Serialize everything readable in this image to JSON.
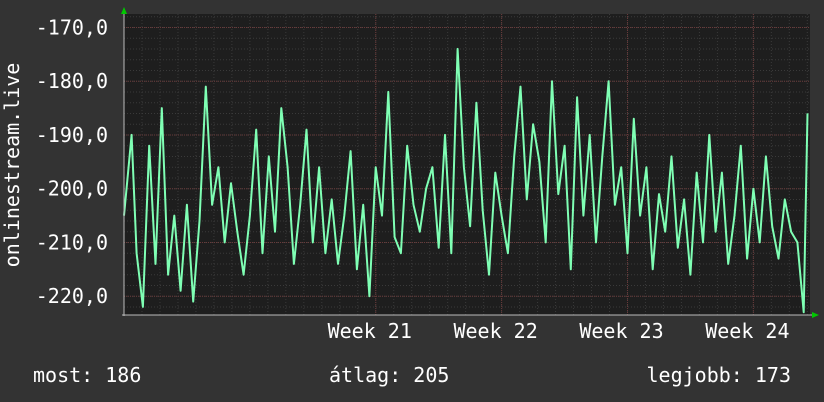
{
  "chart_data": {
    "type": "line",
    "ylabel": "onlinestream.live",
    "ylim": [
      -223.5,
      -167.5
    ],
    "yticks": [
      -170.0,
      -180.0,
      -190.0,
      -200.0,
      -210.0,
      -220.0
    ],
    "ytick_labels": [
      "-170,0",
      "-180,0",
      "-190,0",
      "-200,0",
      "-210,0",
      "-220,0"
    ],
    "xlim": [
      19.0,
      24.45
    ],
    "xticks": [
      21,
      22,
      23,
      24
    ],
    "xtick_labels": [
      "Week  21",
      "Week  22",
      "Week  23",
      "Week  24"
    ],
    "grid": true,
    "colors": {
      "line": "#7fffb4",
      "plot_bg": "#1e1e1e",
      "page_bg": "#333333",
      "grid_major": "#6a3a3a",
      "grid_minor": "#3a3a3a",
      "arrow": "#00c800"
    },
    "series": [
      {
        "x": [
          19.0,
          19.06,
          19.1,
          19.15,
          19.2,
          19.25,
          19.3,
          19.35,
          19.4,
          19.45,
          19.5,
          19.55,
          19.6,
          19.65,
          19.7,
          19.75,
          19.8,
          19.85,
          19.9,
          19.95,
          20.0,
          20.05,
          20.1,
          20.15,
          20.2,
          20.25,
          20.3,
          20.35,
          20.4,
          20.45,
          20.5,
          20.55,
          20.6,
          20.65,
          20.7,
          20.75,
          20.8,
          20.85,
          20.9,
          20.95,
          21.0,
          21.05,
          21.1,
          21.15,
          21.2,
          21.25,
          21.3,
          21.35,
          21.4,
          21.45,
          21.5,
          21.55,
          21.6,
          21.65,
          21.7,
          21.75,
          21.8,
          21.85,
          21.9,
          21.95,
          22.0,
          22.05,
          22.1,
          22.15,
          22.2,
          22.25,
          22.3,
          22.35,
          22.4,
          22.45,
          22.5,
          22.55,
          22.6,
          22.65,
          22.7,
          22.75,
          22.8,
          22.85,
          22.9,
          22.95,
          23.0,
          23.05,
          23.1,
          23.15,
          23.2,
          23.25,
          23.3,
          23.35,
          23.4,
          23.45,
          23.5,
          23.55,
          23.6,
          23.65,
          23.7,
          23.75,
          23.8,
          23.85,
          23.9,
          23.95,
          24.0,
          24.05,
          24.1,
          24.15,
          24.2,
          24.25,
          24.3,
          24.35,
          24.4,
          24.43
        ],
        "y": [
          -205.0,
          -190.0,
          -212.0,
          -222.0,
          -192.0,
          -214.0,
          -185.0,
          -216.0,
          -205.0,
          -219.0,
          -203.0,
          -221.0,
          -206.0,
          -181.0,
          -203.0,
          -196.0,
          -210.0,
          -199.0,
          -208.0,
          -216.0,
          -205.0,
          -189.0,
          -212.0,
          -194.0,
          -208.0,
          -185.0,
          -196.0,
          -214.0,
          -203.0,
          -189.0,
          -210.0,
          -196.0,
          -212.0,
          -202.0,
          -214.0,
          -205.0,
          -193.0,
          -215.0,
          -203.0,
          -220.0,
          -196.0,
          -205.0,
          -182.0,
          -209.0,
          -212.0,
          -192.0,
          -203.0,
          -208.0,
          -200.0,
          -196.0,
          -211.0,
          -190.0,
          -212.0,
          -174.0,
          -196.0,
          -207.0,
          -184.0,
          -204.0,
          -216.0,
          -197.0,
          -205.0,
          -212.0,
          -194.0,
          -181.0,
          -202.0,
          -188.0,
          -195.0,
          -210.0,
          -180.0,
          -201.0,
          -192.0,
          -215.0,
          -183.0,
          -205.0,
          -190.0,
          -210.0,
          -194.0,
          -180.0,
          -203.0,
          -196.0,
          -212.0,
          -187.0,
          -205.0,
          -196.0,
          -215.0,
          -201.0,
          -208.0,
          -194.0,
          -211.0,
          -202.0,
          -216.0,
          -197.0,
          -210.0,
          -190.0,
          -208.0,
          -197.0,
          -214.0,
          -205.0,
          -192.0,
          -213.0,
          -200.0,
          -210.0,
          -194.0,
          -207.0,
          -213.0,
          -202.0,
          -208.0,
          -210.0,
          -223.0,
          -186.0
        ]
      }
    ]
  },
  "stats": {
    "current_label": "most:",
    "current_value": "186",
    "average_label": "átlag:",
    "average_value": "205",
    "best_label": "legjobb:",
    "best_value": "173"
  }
}
